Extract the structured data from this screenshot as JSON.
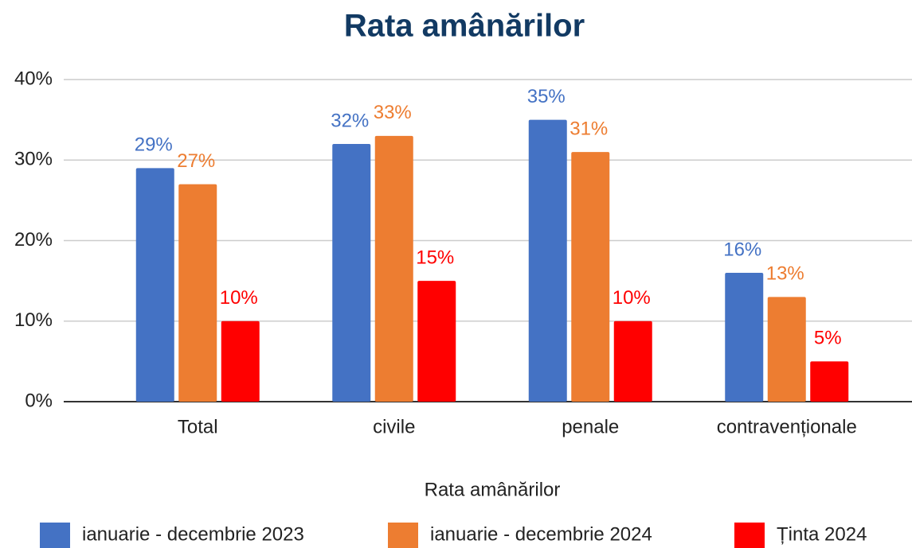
{
  "chart_data": {
    "type": "bar",
    "title": "Rata amânărilor",
    "x_label": "Rata amânărilor",
    "categories": [
      "Total",
      "civile",
      "penale",
      "contravenționale"
    ],
    "series": [
      {
        "name": "ianuarie - decembrie 2023",
        "color": "#4472c4",
        "values": [
          29,
          32,
          35,
          16
        ],
        "value_labels": [
          "29%",
          "32%",
          "35%",
          "16%"
        ]
      },
      {
        "name": "ianuarie - decembrie 2024",
        "color": "#ed7d31",
        "values": [
          27,
          33,
          31,
          13
        ],
        "value_labels": [
          "27%",
          "33%",
          "31%",
          "13%"
        ]
      },
      {
        "name": "Ținta 2024",
        "color": "#ff0000",
        "values": [
          10,
          15,
          10,
          5
        ],
        "value_labels": [
          "10%",
          "15%",
          "10%",
          "5%"
        ]
      }
    ],
    "ylim": [
      0,
      40
    ],
    "yticks": [
      {
        "value": 0,
        "label": "0%"
      },
      {
        "value": 10,
        "label": "10%"
      },
      {
        "value": 20,
        "label": "20%"
      },
      {
        "value": 30,
        "label": "30%"
      },
      {
        "value": 40,
        "label": "40%"
      }
    ],
    "grid": true,
    "legend": "bottom"
  }
}
